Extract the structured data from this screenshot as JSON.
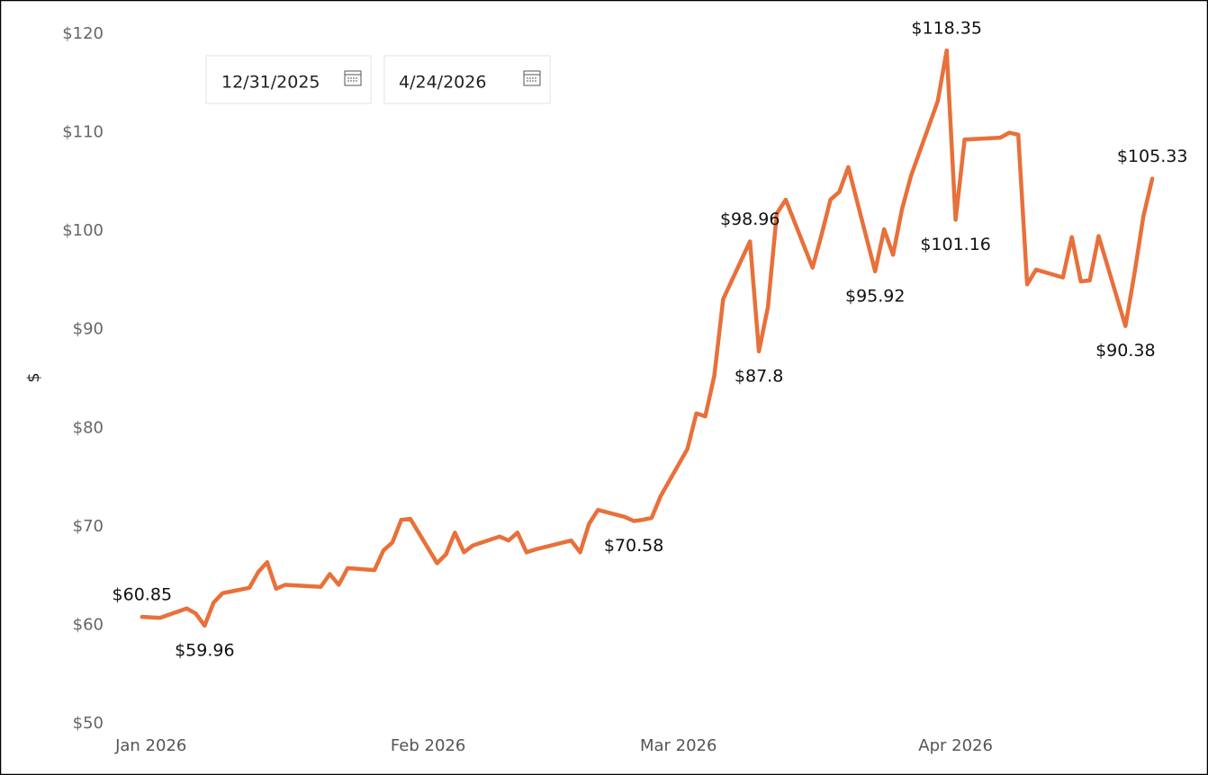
{
  "slicer": {
    "start": "12/31/2025",
    "end": "4/24/2026"
  },
  "chart_data": {
    "type": "line",
    "y_label": "$",
    "color": "#e8703a",
    "grid": false,
    "x": [
      "2025-12-31",
      "2026-01-02",
      "2026-01-05",
      "2026-01-06",
      "2026-01-07",
      "2026-01-08",
      "2026-01-09",
      "2026-01-12",
      "2026-01-13",
      "2026-01-14",
      "2026-01-15",
      "2026-01-16",
      "2026-01-20",
      "2026-01-21",
      "2026-01-22",
      "2026-01-23",
      "2026-01-26",
      "2026-01-27",
      "2026-01-28",
      "2026-01-29",
      "2026-01-30",
      "2026-02-02",
      "2026-02-03",
      "2026-02-04",
      "2026-02-05",
      "2026-02-06",
      "2026-02-09",
      "2026-02-10",
      "2026-02-11",
      "2026-02-12",
      "2026-02-13",
      "2026-02-17",
      "2026-02-18",
      "2026-02-19",
      "2026-02-20",
      "2026-02-23",
      "2026-02-24",
      "2026-02-25",
      "2026-02-26",
      "2026-02-27",
      "2026-03-02",
      "2026-03-03",
      "2026-03-04",
      "2026-03-05",
      "2026-03-06",
      "2026-03-09",
      "2026-03-10",
      "2026-03-11",
      "2026-03-12",
      "2026-03-13",
      "2026-03-16",
      "2026-03-17",
      "2026-03-18",
      "2026-03-19",
      "2026-03-20",
      "2026-03-23",
      "2026-03-24",
      "2026-03-25",
      "2026-03-26",
      "2026-03-27",
      "2026-03-30",
      "2026-03-31",
      "2026-04-01",
      "2026-04-02",
      "2026-04-06",
      "2026-04-07",
      "2026-04-08",
      "2026-04-09",
      "2026-04-10",
      "2026-04-13",
      "2026-04-14",
      "2026-04-15",
      "2026-04-16",
      "2026-04-17",
      "2026-04-20",
      "2026-04-21",
      "2026-04-22",
      "2026-04-23"
    ],
    "values": [
      60.85,
      60.75,
      61.7,
      61.2,
      59.96,
      62.3,
      63.25,
      63.8,
      65.4,
      66.4,
      63.7,
      64.1,
      63.9,
      65.2,
      64.1,
      65.8,
      65.6,
      67.6,
      68.4,
      70.7,
      70.8,
      66.3,
      67.2,
      69.4,
      67.4,
      68.1,
      69.0,
      68.6,
      69.4,
      67.4,
      67.7,
      68.6,
      67.4,
      70.3,
      71.7,
      71.0,
      70.58,
      70.7,
      70.9,
      73.1,
      77.9,
      81.5,
      81.2,
      85.3,
      93.1,
      98.96,
      87.8,
      92.3,
      101.8,
      103.2,
      96.3,
      99.6,
      103.2,
      104.0,
      106.5,
      95.92,
      100.2,
      97.6,
      102.2,
      105.6,
      113.2,
      118.35,
      101.16,
      109.3,
      109.5,
      110.0,
      109.8,
      94.6,
      96.1,
      95.3,
      99.4,
      94.9,
      95.0,
      99.5,
      90.38,
      95.7,
      101.5,
      105.33
    ],
    "value_labels": [
      "$60.85",
      null,
      null,
      null,
      "$59.96",
      null,
      null,
      null,
      null,
      null,
      null,
      null,
      null,
      null,
      null,
      null,
      null,
      null,
      null,
      null,
      null,
      null,
      null,
      null,
      null,
      null,
      null,
      null,
      null,
      null,
      null,
      null,
      null,
      null,
      null,
      null,
      "$70.58",
      null,
      null,
      null,
      null,
      null,
      null,
      null,
      null,
      "$98.96",
      "$87.8",
      null,
      null,
      null,
      null,
      null,
      null,
      null,
      null,
      "$95.92",
      null,
      null,
      null,
      null,
      null,
      "$118.35",
      "$101.16",
      null,
      null,
      null,
      null,
      null,
      null,
      null,
      null,
      null,
      null,
      null,
      "$90.38",
      null,
      null,
      "$105.33"
    ],
    "xlim": [
      "2025-12-28",
      "2026-04-25"
    ],
    "xticks": [
      {
        "value": "2026-01-01",
        "label": "Jan 2026"
      },
      {
        "value": "2026-02-01",
        "label": "Feb 2026"
      },
      {
        "value": "2026-03-01",
        "label": "Mar 2026"
      },
      {
        "value": "2026-04-01",
        "label": "Apr 2026"
      }
    ],
    "ylim": [
      50,
      120
    ],
    "yticks": [
      {
        "value": 50,
        "label": "$50"
      },
      {
        "value": 60,
        "label": "$60"
      },
      {
        "value": 70,
        "label": "$70"
      },
      {
        "value": 80,
        "label": "$80"
      },
      {
        "value": 90,
        "label": "$90"
      },
      {
        "value": 100,
        "label": "$100"
      },
      {
        "value": 110,
        "label": "$110"
      },
      {
        "value": 120,
        "label": "$120"
      }
    ]
  }
}
